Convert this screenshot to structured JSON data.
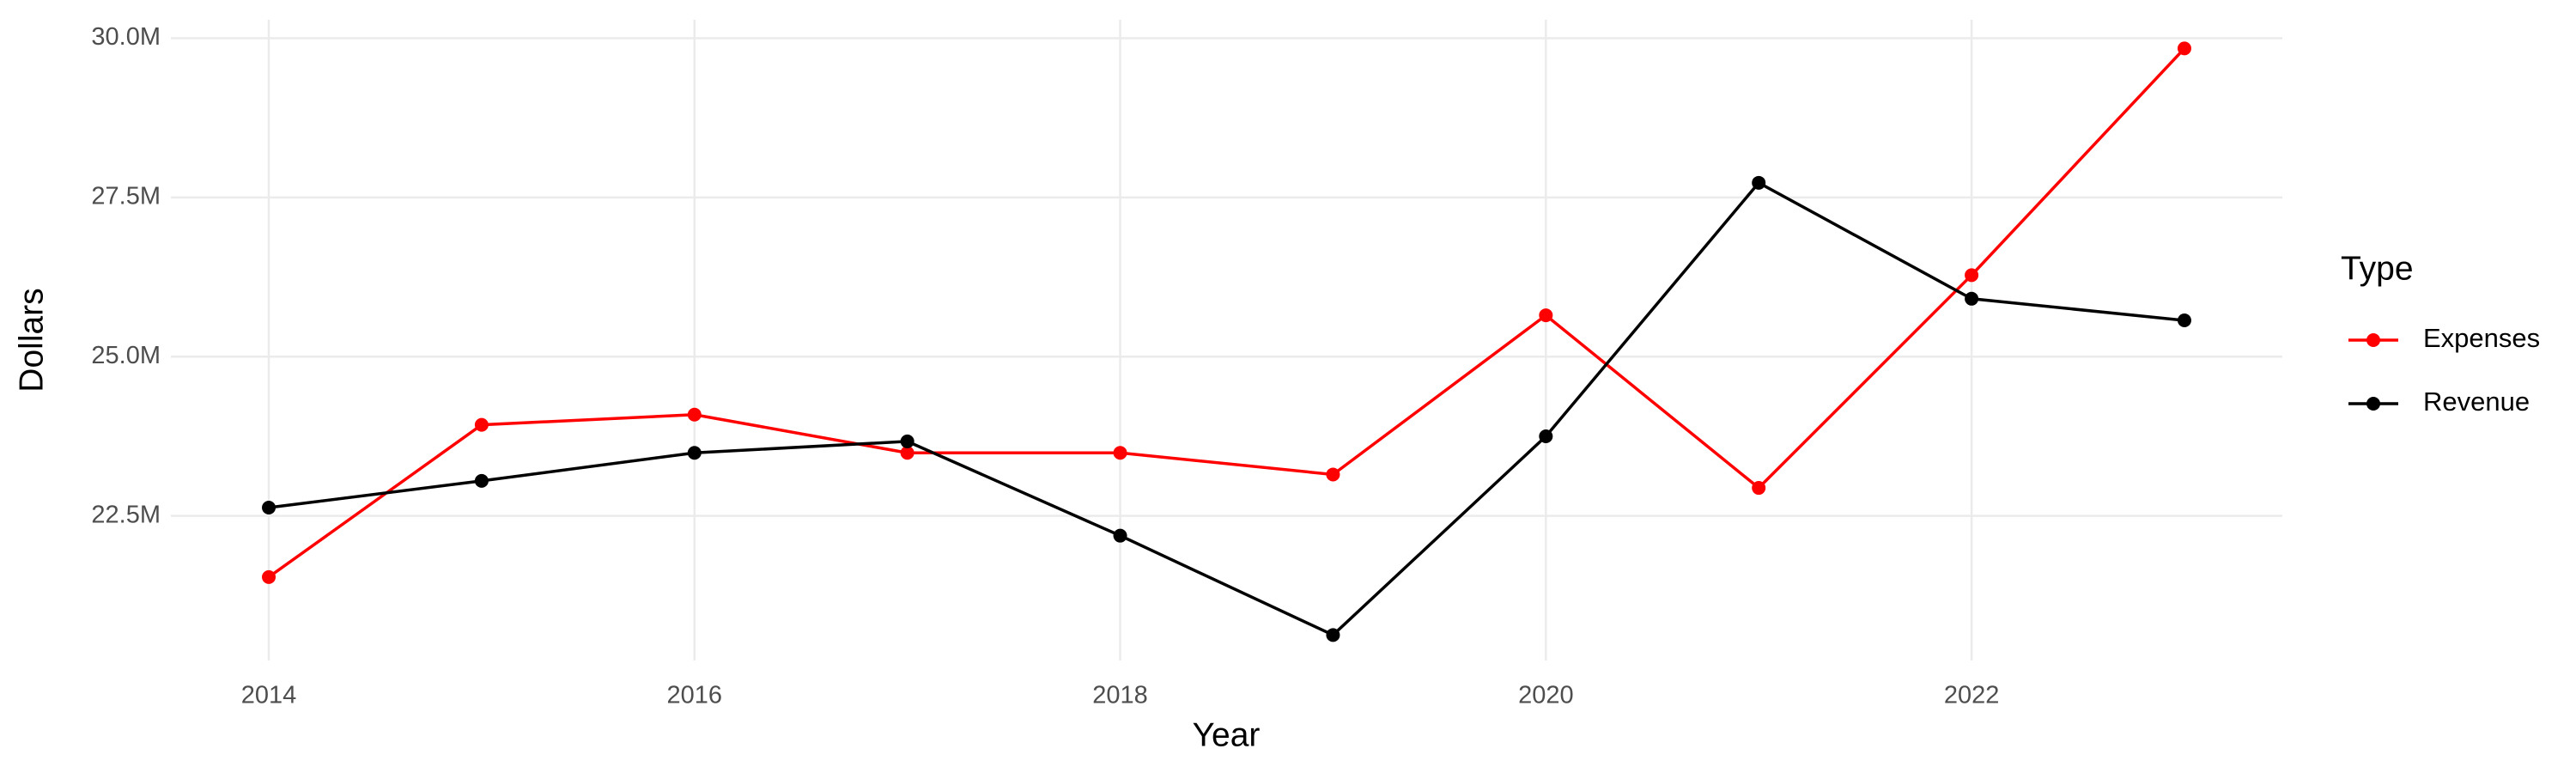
{
  "chart_data": {
    "type": "line",
    "x_label": "Year",
    "y_label": "Dollars",
    "legend_title": "Type",
    "legend": "right",
    "grid": true,
    "x": [
      2014,
      2015,
      2016,
      2017,
      2018,
      2019,
      2020,
      2021,
      2022,
      2023
    ],
    "series": [
      {
        "name": "Expenses",
        "color": "#ff0000",
        "values": [
          21540000,
          23930000,
          24090000,
          23490000,
          23490000,
          23150000,
          25650000,
          22940000,
          26280000,
          29840000
        ]
      },
      {
        "name": "Revenue",
        "color": "#000000",
        "values": [
          22630000,
          23050000,
          23490000,
          23670000,
          22190000,
          20630000,
          23750000,
          27730000,
          25910000,
          25570000
        ]
      }
    ],
    "xlim": [
      2013.54,
      2023.46
    ],
    "xticks": [
      2014,
      2016,
      2018,
      2020,
      2022
    ],
    "ylim": [
      20230000,
      30290000
    ],
    "yticks": [
      {
        "value": 22500000,
        "label": "22.5M"
      },
      {
        "value": 25000000,
        "label": "25.0M"
      },
      {
        "value": 27500000,
        "label": "27.5M"
      },
      {
        "value": 30000000,
        "label": "30.0M"
      }
    ]
  }
}
